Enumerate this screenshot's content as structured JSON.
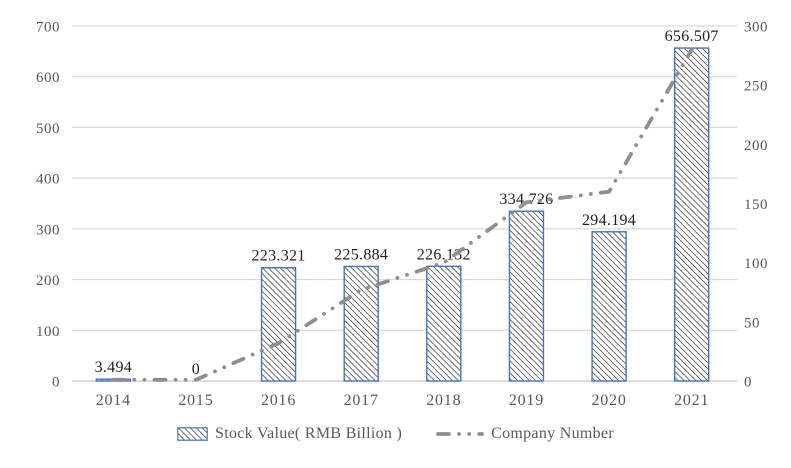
{
  "chart_data": {
    "type": "combo",
    "title": "",
    "categories": [
      "2014",
      "2015",
      "2016",
      "2017",
      "2018",
      "2019",
      "2020",
      "2021"
    ],
    "series": [
      {
        "name": "Stock Value( RMB Billion )",
        "type": "bar",
        "axis": "left",
        "values": [
          3.494,
          0,
          223.321,
          225.884,
          226.132,
          334.726,
          294.194,
          656.507
        ],
        "data_labels": [
          "3.494",
          "0",
          "223.321",
          "225.884",
          "226.132",
          "334.726",
          "294.194",
          "656.507"
        ]
      },
      {
        "name": "Company Number",
        "type": "line",
        "axis": "right",
        "values": [
          1,
          1,
          32,
          77,
          100,
          151,
          160,
          280
        ]
      }
    ],
    "left_axis": {
      "min": 0,
      "max": 700,
      "step": 100,
      "ticks": [
        0,
        100,
        200,
        300,
        400,
        500,
        600,
        700
      ]
    },
    "right_axis": {
      "min": 0,
      "max": 300,
      "step": 50,
      "ticks": [
        0,
        50,
        100,
        150,
        200,
        250,
        300
      ]
    },
    "gridlines": "horizontal",
    "legend_position": "bottom",
    "colors": {
      "bar_border": "#4472c4",
      "bar_fill": "#ffffff",
      "bar_hatch": "#262626",
      "line": "#8f8f8f",
      "gridline": "#d9d9d9",
      "axis_text": "#595959",
      "data_label_text": "#1f1f1f",
      "background": "#ffffff"
    }
  }
}
